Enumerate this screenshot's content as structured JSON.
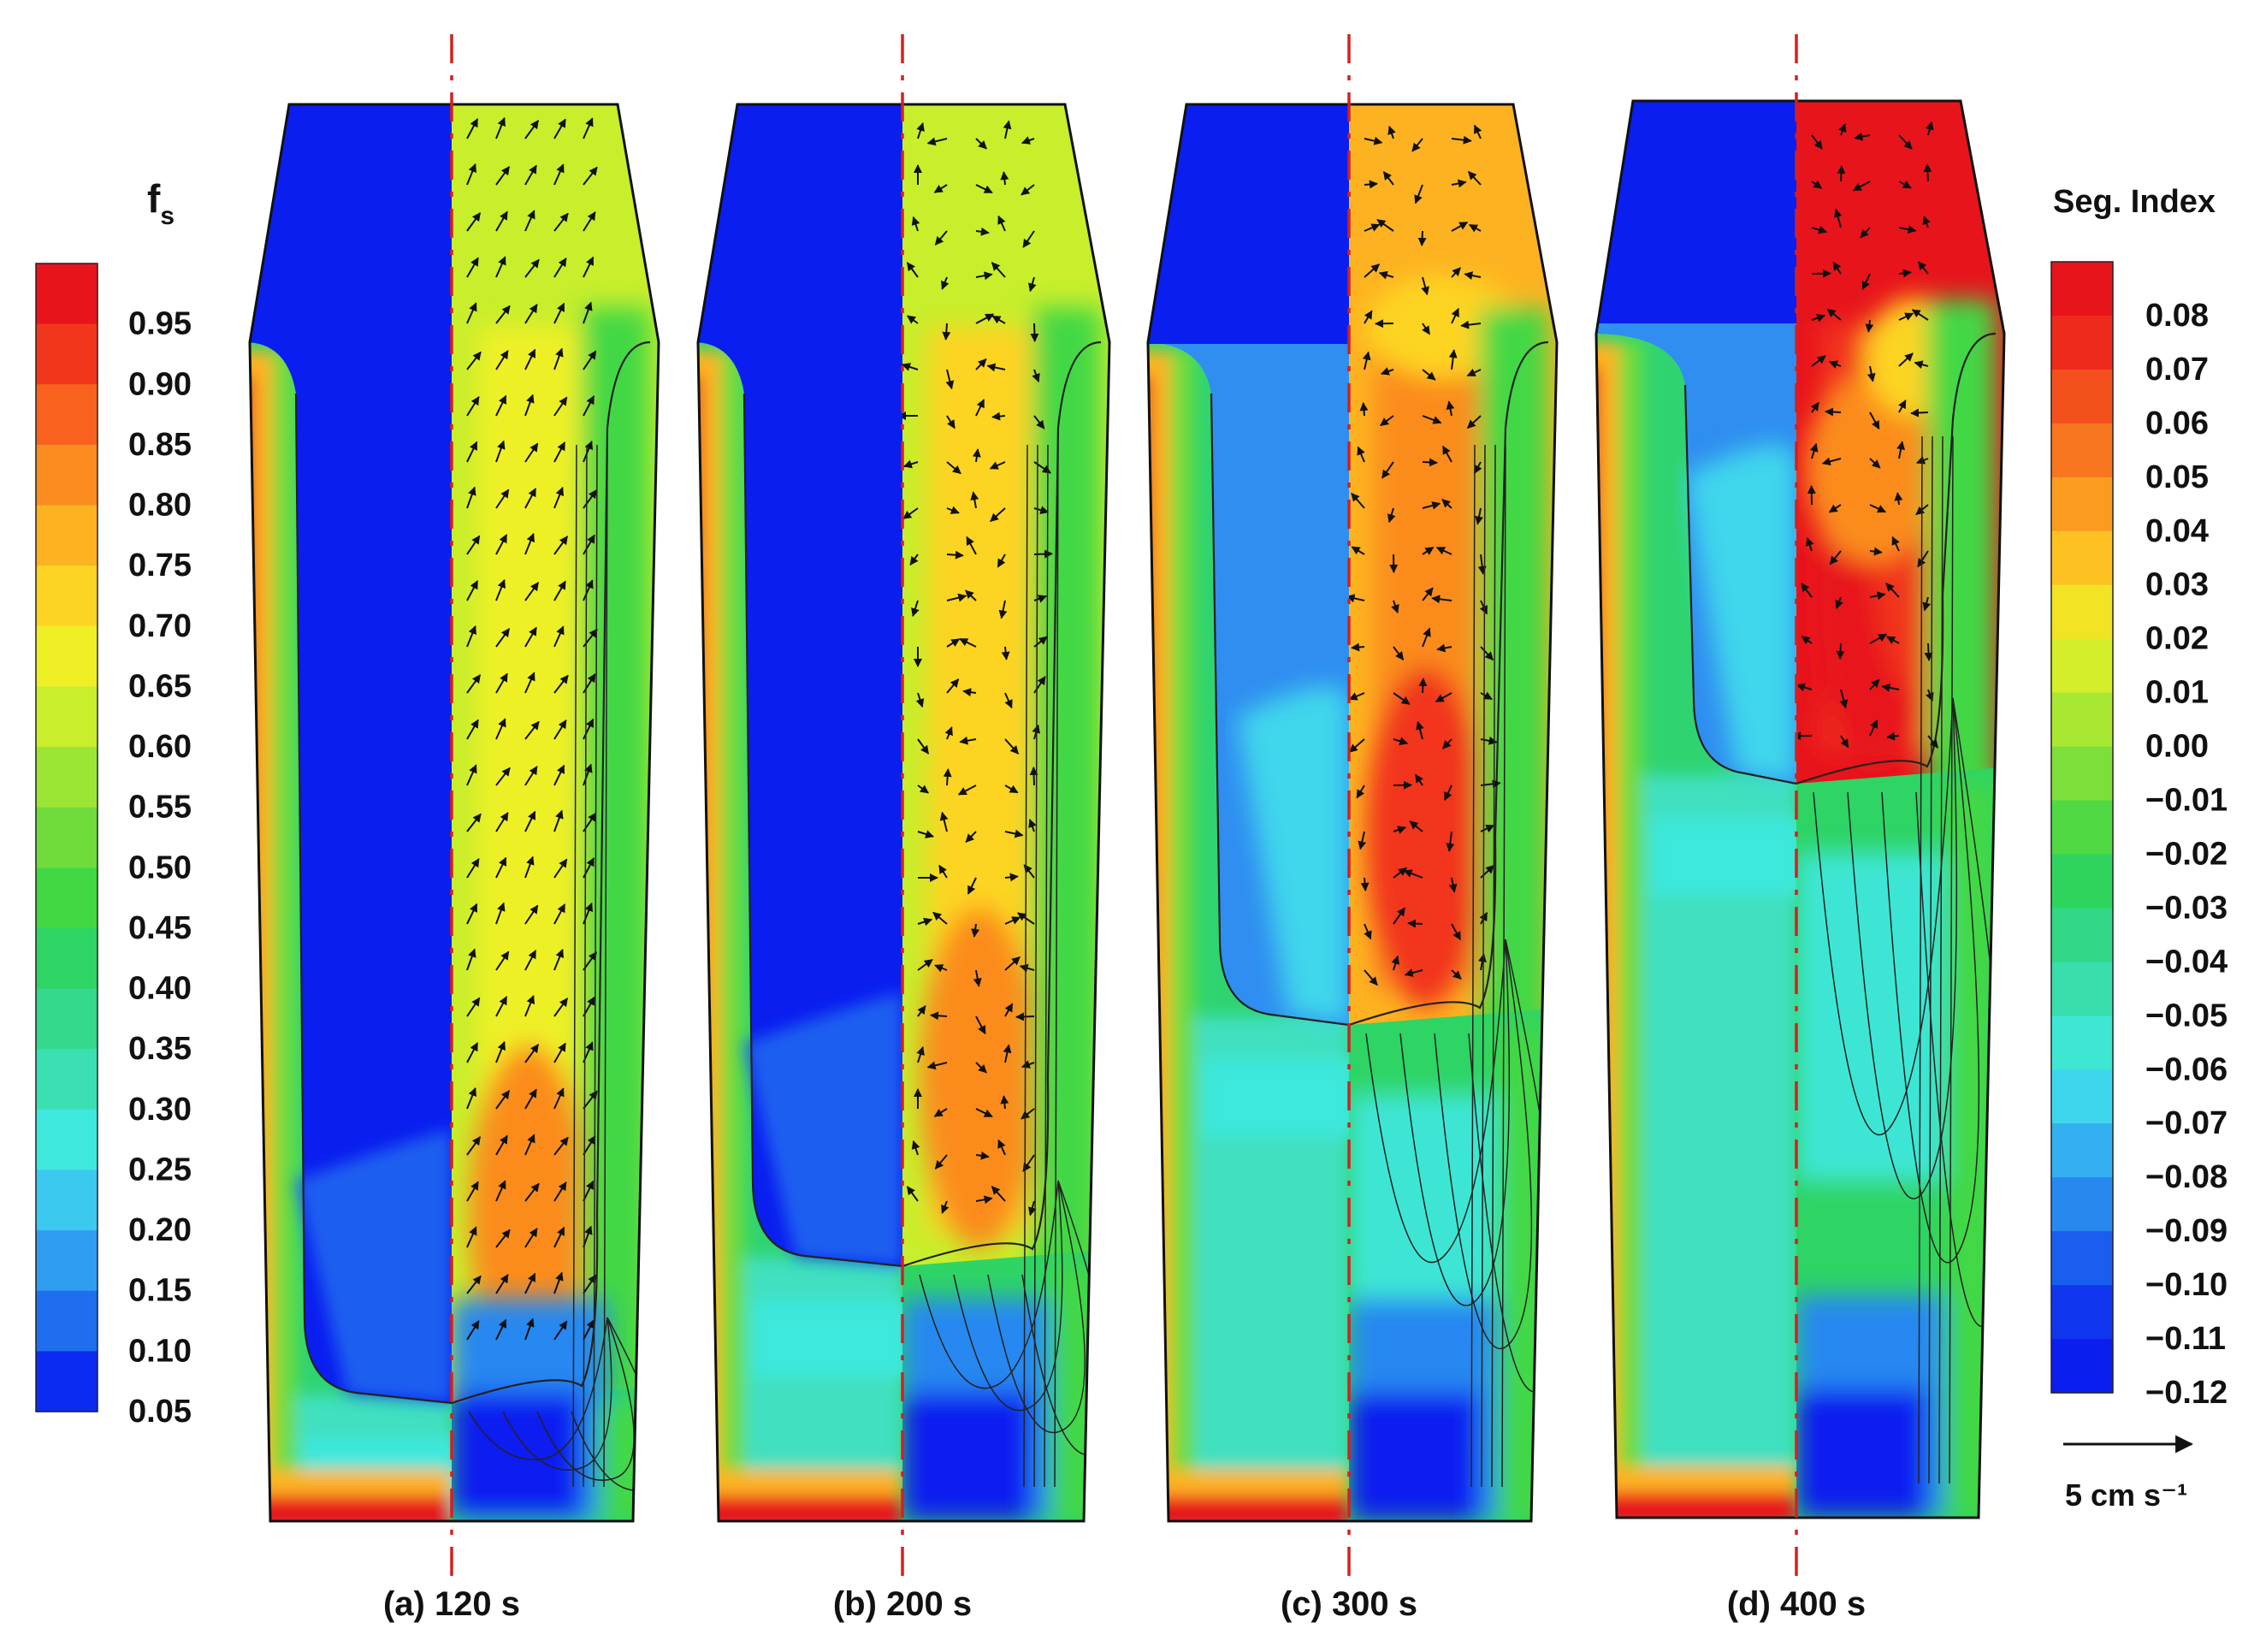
{
  "fs_legend": {
    "title_main": "f",
    "title_sub": "s",
    "ticks": [
      "0.95",
      "0.90",
      "0.85",
      "0.80",
      "0.75",
      "0.70",
      "0.65",
      "0.60",
      "0.55",
      "0.50",
      "0.45",
      "0.40",
      "0.35",
      "0.30",
      "0.25",
      "0.20",
      "0.15",
      "0.10",
      "0.05"
    ],
    "colors": [
      "#e8141c",
      "#f2361c",
      "#f8621e",
      "#fb8c1f",
      "#fdb321",
      "#fdd423",
      "#eef025",
      "#c8ee2c",
      "#9be634",
      "#6fdc3c",
      "#42d844",
      "#2ed464",
      "#34d98c",
      "#3ae0b2",
      "#3fe8dc",
      "#3cc9f0",
      "#2f9ef0",
      "#1f6ef0",
      "#0b2cf0"
    ]
  },
  "seg_legend": {
    "title": "Seg. Index",
    "ticks": [
      "0.08",
      "0.07",
      "0.06",
      "0.05",
      "0.04",
      "0.03",
      "0.02",
      "0.01",
      "0.00",
      "−0.01",
      "−0.02",
      "−0.03",
      "−0.04",
      "−0.05",
      "−0.06",
      "−0.07",
      "−0.08",
      "−0.09",
      "−0.10",
      "−0.11",
      "−0.12"
    ],
    "colors": [
      "#e8141c",
      "#ee2a1c",
      "#f4501e",
      "#f8761f",
      "#fb9c20",
      "#fdc222",
      "#f2e324",
      "#d4ef2a",
      "#a8e832",
      "#7ddf3a",
      "#50d942",
      "#2fd45e",
      "#32d886",
      "#38deac",
      "#3ee6d4",
      "#3ed6ec",
      "#33b0f0",
      "#2788f0",
      "#1a5ef0",
      "#1036f0",
      "#0a1ef0"
    ]
  },
  "scale_arrow": {
    "label": "5 cm s⁻¹"
  },
  "panels": [
    {
      "label": "(a) 120 s"
    },
    {
      "label": "(b) 200 s"
    },
    {
      "label": "(c) 300 s"
    },
    {
      "label": "(d) 400 s"
    }
  ],
  "palette": {
    "deep_blue": "#0a1ef0",
    "mid_blue": "#1f6ef0",
    "cyan": "#3fe8dc",
    "green": "#2ed464",
    "yellow_green": "#c8ee2c",
    "yellow": "#fdd423",
    "orange": "#fb8c1f",
    "red": "#e8141c",
    "axis_red": "#d42020"
  }
}
